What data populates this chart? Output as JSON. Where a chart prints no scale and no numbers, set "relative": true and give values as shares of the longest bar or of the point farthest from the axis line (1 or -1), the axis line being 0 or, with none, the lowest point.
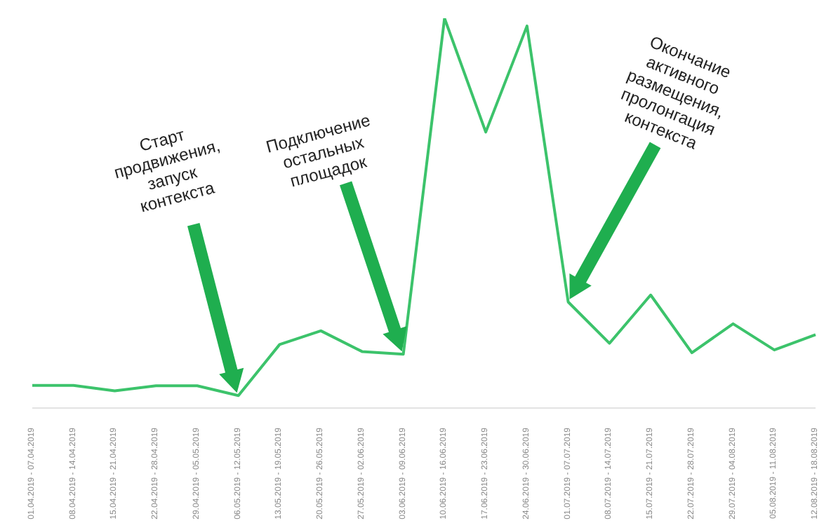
{
  "chart_data": {
    "type": "line",
    "relative": true,
    "color": "#3cc36b",
    "marker": "none",
    "line_style": "solid",
    "categories": [
      "01.04.2019 - 07.04.2019",
      "08.04.2019 - 14.04.2019",
      "15.04.2019 - 21.04.2019",
      "22.04.2019 - 28.04.2019",
      "29.04.2019 - 05.05.2019",
      "06.05.2019 - 12.05.2019",
      "13.05.2019 - 19.05.2019",
      "20.05.2019 - 26.05.2019",
      "27.05.2019 - 02.06.2019",
      "03.06.2019 - 09.06.2019",
      "10.06.2019 - 16.06.2019",
      "17.06.2019 - 23.06.2019",
      "24.06.2019 - 30.06.2019",
      "01.07.2019 - 07.07.2019",
      "08.07.2019 - 14.07.2019",
      "15.07.2019 - 21.07.2019",
      "22.07.2019 - 28.07.2019",
      "29.07.2019 - 04.08.2019",
      "05.08.2019 - 11.08.2019",
      "12.08.2019 - 18.08.2019"
    ],
    "values": [
      0.058,
      0.058,
      0.044,
      0.057,
      0.057,
      0.032,
      0.163,
      0.198,
      0.145,
      0.138,
      1,
      0.708,
      0.98,
      0.272,
      0.166,
      0.29,
      0.142,
      0.216,
      0.149,
      0.188
    ],
    "annotations": [
      "Старт продвижения, запуск контекста",
      "Подключение остальных площадок",
      "Окончание активного размещения, пролонгация контекста"
    ]
  }
}
